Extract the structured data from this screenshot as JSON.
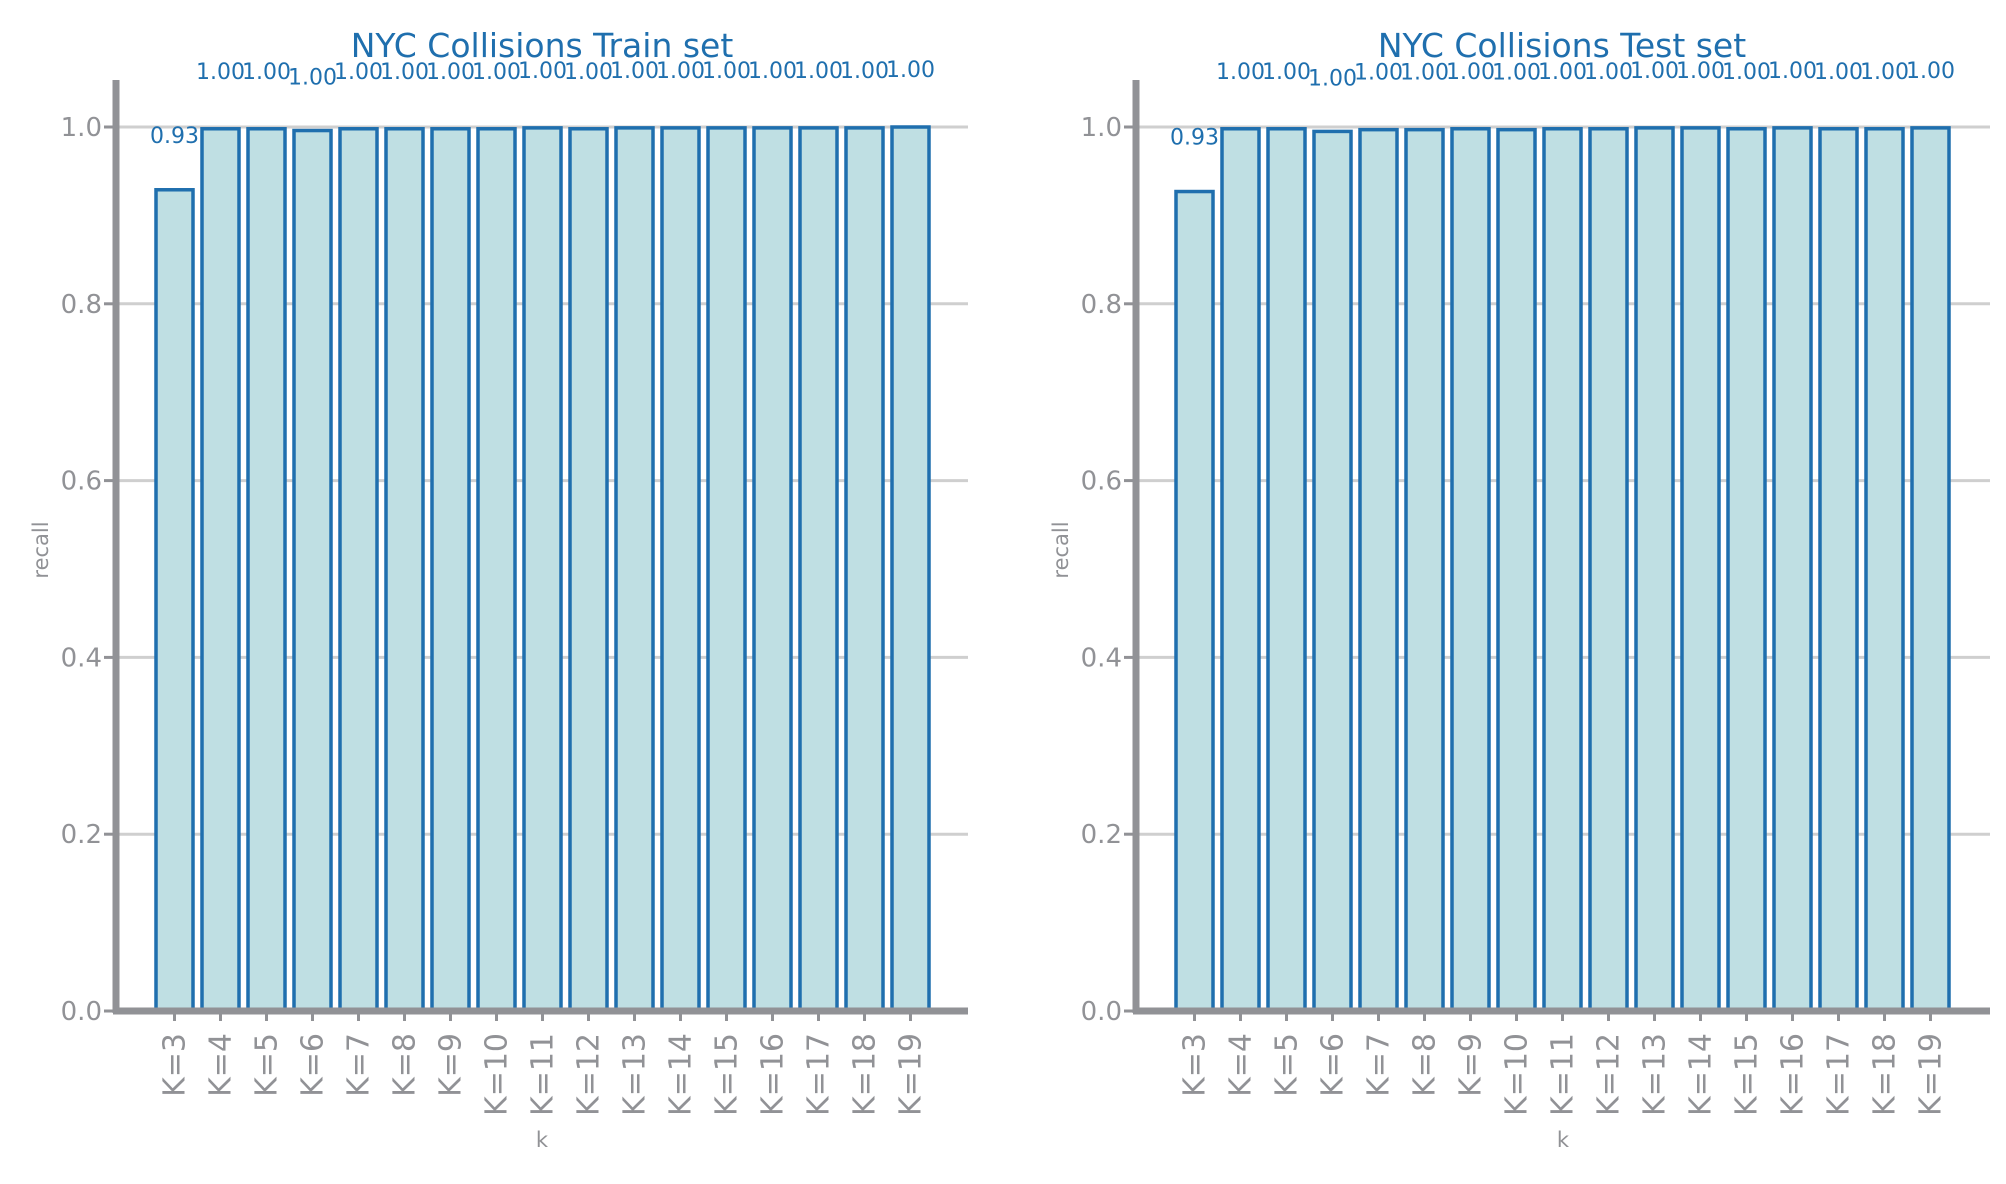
{
  "colors": {
    "accent": "#1f6fae",
    "bar_fill": "#bfdfe3",
    "axis": "#919296",
    "grid": "#cfcfcf",
    "tick_text": "#919296",
    "label_text": "#919296",
    "title_text": "#1f6fae"
  },
  "chart_data": [
    {
      "type": "bar",
      "title": "NYC Collisions Train set",
      "xlabel": "k",
      "ylabel": "recall",
      "ylim": [
        0,
        1.05
      ],
      "yticks": [
        "0.0",
        "0.2",
        "0.4",
        "0.6",
        "0.8",
        "1.0"
      ],
      "grid": "horizontal",
      "categories": [
        "K=3",
        "K=4",
        "K=5",
        "K=6",
        "K=7",
        "K=8",
        "K=9",
        "K=10",
        "K=11",
        "K=12",
        "K=13",
        "K=14",
        "K=15",
        "K=16",
        "K=17",
        "K=18",
        "K=19"
      ],
      "values": [
        0.929,
        0.998,
        0.998,
        0.996,
        0.998,
        0.998,
        0.998,
        0.998,
        0.999,
        0.998,
        0.999,
        0.999,
        0.999,
        0.999,
        0.999,
        0.999,
        1.0
      ],
      "data_labels": [
        "0.93",
        "1.00",
        "1.00",
        "1.00",
        "1.00",
        "1.00",
        "1.00",
        "1.00",
        "1.00",
        "1.00",
        "1.00",
        "1.00",
        "1.00",
        "1.00",
        "1.00",
        "1.00",
        "1.00"
      ]
    },
    {
      "type": "bar",
      "title": "NYC Collisions Test set",
      "xlabel": "k",
      "ylabel": "recall",
      "ylim": [
        0,
        1.05
      ],
      "yticks": [
        "0.0",
        "0.2",
        "0.4",
        "0.6",
        "0.8",
        "1.0"
      ],
      "grid": "horizontal",
      "categories": [
        "K=3",
        "K=4",
        "K=5",
        "K=6",
        "K=7",
        "K=8",
        "K=9",
        "K=10",
        "K=11",
        "K=12",
        "K=13",
        "K=14",
        "K=15",
        "K=16",
        "K=17",
        "K=18",
        "K=19"
      ],
      "values": [
        0.927,
        0.998,
        0.998,
        0.995,
        0.997,
        0.997,
        0.998,
        0.997,
        0.998,
        0.998,
        0.999,
        0.999,
        0.998,
        0.999,
        0.998,
        0.998,
        0.999
      ],
      "data_labels": [
        "0.93",
        "1.00",
        "1.00",
        "1.00",
        "1.00",
        "1.00",
        "1.00",
        "1.00",
        "1.00",
        "1.00",
        "1.00",
        "1.00",
        "1.00",
        "1.00",
        "1.00",
        "1.00",
        "1.00"
      ]
    }
  ]
}
